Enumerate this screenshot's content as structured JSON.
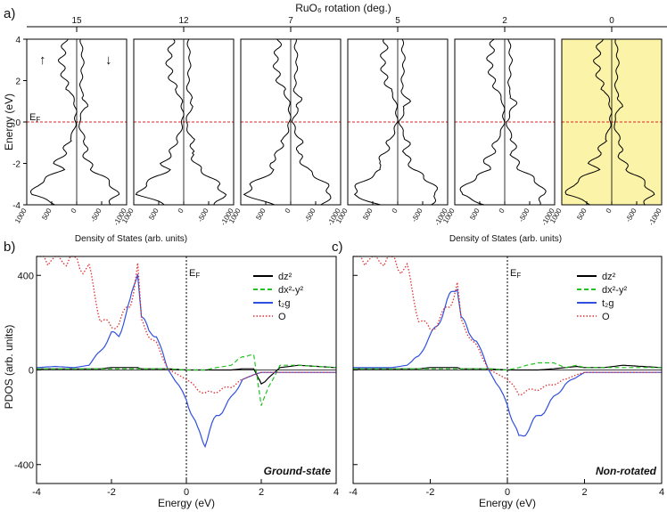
{
  "figure": {
    "panel_a_label": "a)",
    "panel_b_label": "b)",
    "panel_c_label": "c)",
    "top_axis_title": "RuO₆ rotation (deg.)",
    "dos_axis_label": "Density of States (arb. units)",
    "energy_axis_label": "Energy (eV)",
    "ef_label": "E",
    "ef_sub": "F",
    "spin_up": "↑",
    "spin_down": "↓",
    "highlight_color": "#fbf3a8"
  },
  "chart_data": [
    {
      "id": "panel-a",
      "type": "line",
      "title": "",
      "xlabel": "Density of States (arb. units)",
      "ylabel": "Energy (eV)",
      "ylim": [
        -4,
        4
      ],
      "xlim": [
        1000,
        -1000
      ],
      "y_ticks": [
        "4",
        "2",
        "0",
        "-2",
        "-4"
      ],
      "x_ticks": [
        "1000",
        "500",
        "0",
        "-500",
        "-1000"
      ],
      "top_axis_title": "RuO₆ rotation (deg.)",
      "top_ticks": [
        "15",
        "12",
        "7",
        "5",
        "2",
        "0"
      ],
      "subpanels": [
        {
          "rotation": "15",
          "highlight": false
        },
        {
          "rotation": "12",
          "highlight": false
        },
        {
          "rotation": "7",
          "highlight": false
        },
        {
          "rotation": "5",
          "highlight": false
        },
        {
          "rotation": "2",
          "highlight": false
        },
        {
          "rotation": "0",
          "highlight": true
        }
      ],
      "energy_grid": [
        -4,
        -3.5,
        -3,
        -2.6,
        -2.3,
        -2,
        -1.5,
        -1,
        -0.5,
        0,
        0.5,
        1,
        1.5,
        2,
        2.5,
        3,
        3.5,
        4
      ],
      "series": [
        {
          "name": "spin up",
          "values": [
            380,
            900,
            780,
            520,
            300,
            420,
            250,
            180,
            70,
            20,
            20,
            40,
            140,
            240,
            280,
            310,
            260,
            230
          ]
        },
        {
          "name": "spin down",
          "values": [
            -650,
            -800,
            -700,
            -500,
            -320,
            -250,
            -150,
            -200,
            -100,
            -40,
            -120,
            -200,
            -80,
            -90,
            -110,
            -130,
            -100,
            -90
          ]
        }
      ]
    },
    {
      "id": "panel-b",
      "type": "line",
      "title": "Ground-state",
      "xlabel": "Energy (eV)",
      "ylabel": "PDOS (arb. units)",
      "xlim": [
        -4,
        4
      ],
      "ylim": [
        -480,
        480
      ],
      "x_ticks": [
        "-4",
        "-2",
        "0",
        "2",
        "4"
      ],
      "y_ticks": [
        "400",
        "0",
        "-400"
      ],
      "x": [
        -4,
        -3.5,
        -3,
        -2.6,
        -2.3,
        -2,
        -1.8,
        -1.5,
        -1.3,
        -1.2,
        -1,
        -0.8,
        -0.5,
        0,
        0.3,
        0.5,
        0.8,
        1.2,
        1.5,
        1.8,
        2,
        2.5,
        3,
        3.5,
        4
      ],
      "series": [
        {
          "name": "dz²",
          "color": "#000000",
          "style": "solid",
          "values": [
            5,
            5,
            5,
            5,
            5,
            10,
            10,
            10,
            10,
            5,
            5,
            5,
            5,
            0,
            0,
            0,
            0,
            0,
            5,
            5,
            -60,
            10,
            20,
            15,
            10
          ]
        },
        {
          "name": "dx²-y²",
          "color": "#22c322",
          "style": "dashed",
          "values": [
            5,
            5,
            5,
            5,
            5,
            5,
            5,
            5,
            5,
            5,
            5,
            5,
            5,
            0,
            0,
            0,
            10,
            20,
            60,
            60,
            -140,
            20,
            20,
            15,
            10
          ]
        },
        {
          "name": "t₂g",
          "color": "#3050e0",
          "style": "solid",
          "values": [
            10,
            15,
            10,
            20,
            80,
            150,
            150,
            280,
            440,
            230,
            160,
            150,
            5,
            -120,
            -260,
            -300,
            -200,
            -120,
            -40,
            -20,
            -10,
            -10,
            -10,
            -10,
            -10
          ]
        },
        {
          "name": "O",
          "color": "#e03030",
          "style": "dotted",
          "values": [
            480,
            480,
            470,
            420,
            220,
            180,
            200,
            280,
            440,
            200,
            150,
            110,
            5,
            -40,
            -80,
            -100,
            -90,
            -70,
            -40,
            -20,
            -10,
            -10,
            -10,
            -10,
            -10
          ]
        }
      ]
    },
    {
      "id": "panel-c",
      "type": "line",
      "title": "Non-rotated",
      "xlabel": "Energy (eV)",
      "ylabel": "PDOS (arb. units)",
      "xlim": [
        -4,
        4
      ],
      "ylim": [
        -480,
        480
      ],
      "x_ticks": [
        "-4",
        "-2",
        "0",
        "2",
        "4"
      ],
      "y_ticks": [
        "400",
        "0",
        "-400"
      ],
      "x": [
        -4,
        -3.5,
        -3,
        -2.6,
        -2.3,
        -2,
        -1.8,
        -1.5,
        -1.3,
        -1.2,
        -1,
        -0.8,
        -0.5,
        0,
        0.3,
        0.5,
        0.8,
        1.2,
        1.5,
        1.8,
        2,
        2.5,
        3,
        3.5,
        4
      ],
      "series": [
        {
          "name": "dz²",
          "color": "#000000",
          "style": "solid",
          "values": [
            5,
            5,
            5,
            5,
            5,
            10,
            10,
            10,
            10,
            5,
            5,
            5,
            5,
            0,
            0,
            0,
            0,
            5,
            10,
            15,
            10,
            10,
            20,
            15,
            10
          ]
        },
        {
          "name": "dx²-y²",
          "color": "#22c322",
          "style": "dashed",
          "values": [
            5,
            5,
            5,
            5,
            5,
            5,
            5,
            5,
            5,
            5,
            5,
            5,
            5,
            0,
            10,
            20,
            30,
            30,
            10,
            20,
            10,
            10,
            10,
            10,
            10
          ]
        },
        {
          "name": "t₂g",
          "color": "#3050e0",
          "style": "solid",
          "values": [
            10,
            10,
            10,
            20,
            60,
            140,
            200,
            300,
            370,
            230,
            150,
            130,
            5,
            -140,
            -300,
            -250,
            -200,
            -120,
            -60,
            -30,
            -10,
            -10,
            -10,
            -10,
            -10
          ]
        },
        {
          "name": "O",
          "color": "#e03030",
          "style": "dotted",
          "values": [
            480,
            480,
            470,
            420,
            220,
            170,
            200,
            280,
            360,
            200,
            150,
            100,
            5,
            -40,
            -100,
            -90,
            -80,
            -60,
            -40,
            -20,
            -10,
            -10,
            -10,
            -10,
            -10
          ]
        }
      ]
    }
  ]
}
